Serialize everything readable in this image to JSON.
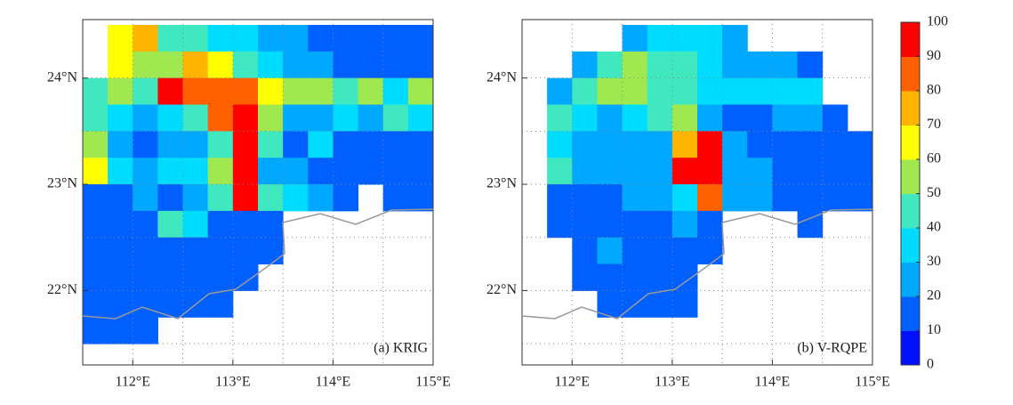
{
  "chart_data": [
    {
      "type": "heatmap",
      "label": "(a) KRIG",
      "x": [
        111.625,
        111.875,
        112.125,
        112.375,
        112.625,
        112.875,
        113.125,
        113.375,
        113.625,
        113.875,
        114.125,
        114.375,
        114.625,
        114.875
      ],
      "y": [
        24.375,
        24.125,
        23.875,
        23.625,
        23.375,
        23.125,
        22.875,
        22.625,
        22.375,
        22.125,
        21.875,
        21.625
      ],
      "values": [
        [
          null,
          60,
          70,
          40,
          40,
          30,
          30,
          20,
          20,
          10,
          10,
          10,
          10,
          10
        ],
        [
          null,
          60,
          50,
          50,
          70,
          60,
          40,
          30,
          20,
          20,
          10,
          10,
          10,
          10
        ],
        [
          40,
          50,
          40,
          90,
          80,
          80,
          80,
          60,
          50,
          50,
          40,
          50,
          30,
          50
        ],
        [
          40,
          30,
          20,
          30,
          40,
          80,
          90,
          50,
          20,
          20,
          30,
          20,
          40,
          30
        ],
        [
          50,
          20,
          10,
          20,
          20,
          40,
          90,
          40,
          10,
          30,
          10,
          10,
          10,
          10
        ],
        [
          60,
          30,
          20,
          30,
          30,
          50,
          100,
          20,
          20,
          10,
          10,
          10,
          10,
          10
        ],
        [
          10,
          10,
          20,
          10,
          20,
          40,
          90,
          40,
          30,
          20,
          10,
          null,
          10,
          10
        ],
        [
          10,
          10,
          10,
          40,
          30,
          10,
          10,
          10,
          null,
          null,
          null,
          null,
          null,
          null
        ],
        [
          10,
          10,
          10,
          10,
          10,
          10,
          10,
          10,
          null,
          null,
          null,
          null,
          null,
          null
        ],
        [
          10,
          10,
          10,
          10,
          10,
          10,
          10,
          null,
          null,
          null,
          null,
          null,
          null,
          null
        ],
        [
          10,
          10,
          10,
          10,
          10,
          10,
          null,
          null,
          null,
          null,
          null,
          null,
          null,
          null
        ],
        [
          10,
          10,
          10,
          null,
          null,
          null,
          null,
          null,
          null,
          null,
          null,
          null,
          null,
          null
        ]
      ],
      "xlim": [
        111.5,
        115.0
      ],
      "ylim": [
        21.3,
        24.55
      ],
      "xticks": [
        {
          "value": 112,
          "label": "112°E"
        },
        {
          "value": 113,
          "label": "113°E"
        },
        {
          "value": 114,
          "label": "114°E"
        },
        {
          "value": 115,
          "label": "115°E"
        }
      ],
      "yticks": [
        {
          "value": 22,
          "label": "22°N"
        },
        {
          "value": 23,
          "label": "23°N"
        },
        {
          "value": 24,
          "label": "24°N"
        }
      ],
      "xminor": [
        112.5,
        113.5,
        114.5
      ],
      "yminor": [
        21.5,
        22.5,
        23.5
      ],
      "colorbar": {
        "lim": [
          0,
          100
        ],
        "ticks": [
          0,
          10,
          20,
          30,
          40,
          50,
          60,
          70,
          80,
          90,
          100
        ],
        "colors": [
          "#0010ff",
          "#0060ff",
          "#00a8ff",
          "#00dcff",
          "#40e8c0",
          "#a0e850",
          "#ffff00",
          "#ffb400",
          "#ff6000",
          "#ff0000"
        ]
      }
    },
    {
      "type": "heatmap",
      "label": "(b) V-RQPE",
      "x": [
        111.625,
        111.875,
        112.125,
        112.375,
        112.625,
        112.875,
        113.125,
        113.375,
        113.625,
        113.875,
        114.125,
        114.375,
        114.625,
        114.875
      ],
      "y": [
        24.375,
        24.125,
        23.875,
        23.625,
        23.375,
        23.125,
        22.875,
        22.625,
        22.375,
        22.125,
        21.875,
        21.625
      ],
      "values": [
        [
          null,
          null,
          null,
          null,
          20,
          30,
          30,
          30,
          20,
          null,
          null,
          null,
          null,
          null
        ],
        [
          null,
          null,
          20,
          40,
          50,
          40,
          40,
          30,
          20,
          20,
          20,
          10,
          null,
          null
        ],
        [
          null,
          20,
          40,
          50,
          50,
          40,
          40,
          30,
          30,
          30,
          30,
          30,
          null,
          null
        ],
        [
          null,
          40,
          30,
          20,
          30,
          40,
          50,
          20,
          10,
          10,
          20,
          20,
          10,
          null
        ],
        [
          null,
          30,
          20,
          20,
          20,
          20,
          70,
          90,
          20,
          10,
          10,
          10,
          10,
          10
        ],
        [
          null,
          40,
          20,
          20,
          20,
          20,
          100,
          90,
          20,
          20,
          10,
          10,
          10,
          10
        ],
        [
          null,
          10,
          10,
          10,
          20,
          20,
          30,
          80,
          20,
          20,
          10,
          10,
          10,
          10
        ],
        [
          null,
          10,
          10,
          10,
          10,
          10,
          20,
          10,
          null,
          null,
          null,
          10,
          null,
          null
        ],
        [
          null,
          null,
          10,
          20,
          10,
          10,
          10,
          10,
          null,
          null,
          null,
          null,
          null,
          null
        ],
        [
          null,
          null,
          10,
          10,
          10,
          10,
          10,
          null,
          null,
          null,
          null,
          null,
          null,
          null
        ],
        [
          null,
          null,
          null,
          10,
          10,
          10,
          10,
          null,
          null,
          null,
          null,
          null,
          null,
          null
        ],
        [
          null,
          null,
          null,
          null,
          null,
          null,
          null,
          null,
          null,
          null,
          null,
          null,
          null,
          null
        ]
      ],
      "xlim": [
        111.5,
        115.0
      ],
      "ylim": [
        21.3,
        24.55
      ],
      "xticks": [
        {
          "value": 112,
          "label": "112°E"
        },
        {
          "value": 113,
          "label": "113°E"
        },
        {
          "value": 114,
          "label": "114°E"
        },
        {
          "value": 115,
          "label": "115°E"
        }
      ],
      "yticks": [
        {
          "value": 22,
          "label": "22°N"
        },
        {
          "value": 23,
          "label": "23°N"
        },
        {
          "value": 24,
          "label": "24°N"
        }
      ],
      "xminor": [
        112.5,
        113.5,
        114.5
      ],
      "yminor": [
        21.5,
        22.5,
        23.5
      ]
    }
  ]
}
